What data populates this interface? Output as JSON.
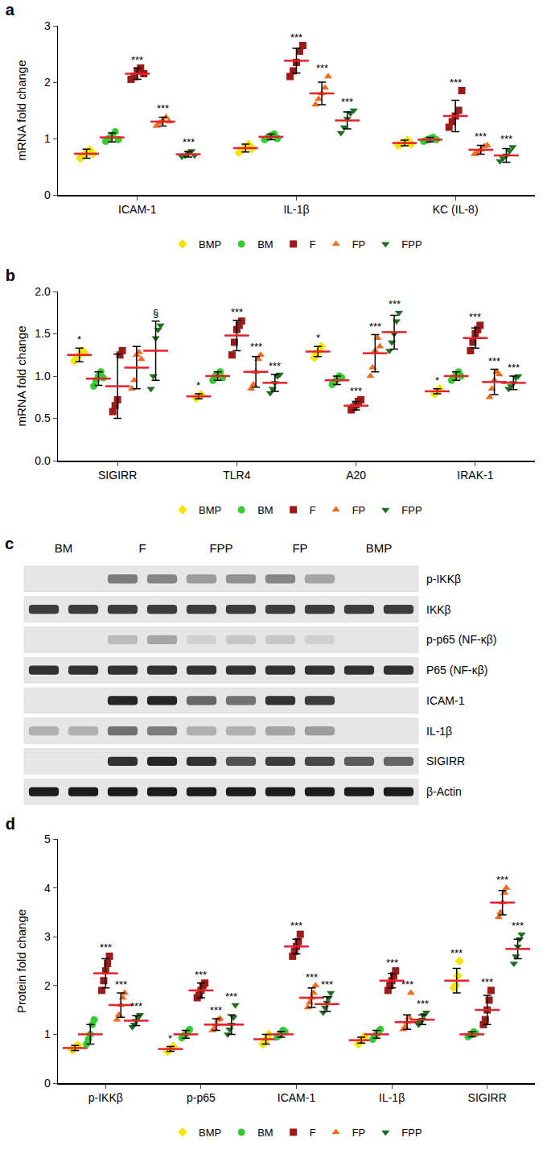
{
  "chart_data": [
    {
      "type": "scatter",
      "title": "a",
      "y_label": "mRNA fold change",
      "categories": [
        "ICAM-1",
        "IL-1β",
        "KC (IL-8)"
      ],
      "ylim": [
        0,
        3
      ],
      "yticks": [
        0,
        1,
        2,
        3
      ],
      "grid": false,
      "legend": "bottom",
      "series": [
        {
          "name": "BMP",
          "color": "#f5e400",
          "marker": "diamond",
          "values": [
            0.73,
            0.83,
            0.92
          ],
          "error": [
            0.08,
            0.07,
            0.05
          ],
          "points": [
            [
              0.65,
              0.7,
              0.75,
              0.8,
              0.73
            ],
            [
              0.75,
              0.8,
              0.85,
              0.9,
              0.82
            ],
            [
              0.88,
              0.9,
              0.93,
              0.97,
              0.9
            ]
          ],
          "significance": [
            null,
            null,
            null
          ]
        },
        {
          "name": "BM",
          "color": "#33cc33",
          "marker": "circle",
          "values": [
            1.02,
            1.03,
            0.98
          ],
          "error": [
            0.08,
            0.05,
            0.04
          ],
          "points": [
            [
              0.95,
              1.0,
              1.05,
              1.12,
              0.98
            ],
            [
              0.98,
              1.02,
              1.05,
              1.08,
              1.0
            ],
            [
              0.95,
              0.97,
              1.0,
              1.02,
              0.98
            ]
          ],
          "significance": [
            null,
            null,
            null
          ]
        },
        {
          "name": "F",
          "color": "#9b1b1b",
          "marker": "square",
          "values": [
            2.15,
            2.38,
            1.4
          ],
          "error": [
            0.1,
            0.22,
            0.28
          ],
          "points": [
            [
              2.05,
              2.1,
              2.2,
              2.25,
              2.15
            ],
            [
              2.1,
              2.2,
              2.35,
              2.55,
              2.65
            ],
            [
              1.2,
              1.3,
              1.4,
              1.5,
              1.85
            ]
          ],
          "significance": [
            "***",
            "***",
            "***"
          ]
        },
        {
          "name": "FP",
          "color": "#f26b1d",
          "marker": "triangle-up",
          "values": [
            1.3,
            1.8,
            0.8
          ],
          "error": [
            0.08,
            0.2,
            0.08
          ],
          "points": [
            [
              1.22,
              1.28,
              1.32,
              1.38,
              1.3
            ],
            [
              1.6,
              1.7,
              1.8,
              1.9,
              2.1
            ],
            [
              0.72,
              0.76,
              0.8,
              0.86,
              0.88
            ]
          ],
          "significance": [
            "***",
            "***",
            "***"
          ]
        },
        {
          "name": "FPP",
          "color": "#1f6e1f",
          "marker": "triangle-down",
          "values": [
            0.72,
            1.32,
            0.7
          ],
          "error": [
            0.05,
            0.15,
            0.12
          ],
          "points": [
            [
              0.68,
              0.7,
              0.74,
              0.78,
              0.7
            ],
            [
              1.1,
              1.2,
              1.35,
              1.45,
              1.5
            ],
            [
              0.6,
              0.65,
              0.7,
              0.78,
              0.85
            ]
          ],
          "significance": [
            "***",
            "***",
            "***"
          ]
        }
      ]
    },
    {
      "type": "scatter",
      "title": "b",
      "y_label": "mRNA fold change",
      "categories": [
        "SIGIRR",
        "TLR4",
        "A20",
        "IRAK-1"
      ],
      "ylim": [
        0,
        2
      ],
      "yticks": [
        {
          "value": 0,
          "label": "0.0"
        },
        0.5,
        {
          "value": 1,
          "label": "1.0"
        },
        1.5,
        {
          "value": 2,
          "label": "2.0"
        }
      ],
      "grid": false,
      "legend": "bottom",
      "series": [
        {
          "name": "BMP",
          "color": "#f5e400",
          "marker": "diamond",
          "values": [
            1.25,
            0.76,
            1.29,
            0.82
          ],
          "error": [
            0.08,
            0.03,
            0.06,
            0.03
          ],
          "points": [
            [
              1.18,
              1.22,
              1.25,
              1.3,
              1.28
            ],
            [
              0.74,
              0.76,
              0.78
            ],
            [
              1.22,
              1.27,
              1.3,
              1.35
            ],
            [
              0.79,
              0.82,
              0.85
            ]
          ],
          "significance": [
            "*",
            "*",
            "*",
            "*"
          ]
        },
        {
          "name": "BM",
          "color": "#33cc33",
          "marker": "circle",
          "values": [
            0.97,
            1.0,
            0.95,
            1.0
          ],
          "error": [
            0.08,
            0.05,
            0.05,
            0.05
          ],
          "points": [
            [
              0.88,
              0.95,
              1.0,
              1.05,
              0.98
            ],
            [
              0.95,
              1.0,
              1.02,
              1.05,
              0.98
            ],
            [
              0.9,
              0.93,
              0.96,
              1.0,
              0.98
            ],
            [
              0.95,
              0.98,
              1.02,
              1.05,
              1.0
            ]
          ],
          "significance": [
            null,
            null,
            null,
            null
          ]
        },
        {
          "name": "F",
          "color": "#9b1b1b",
          "marker": "square",
          "values": [
            0.88,
            1.48,
            0.65,
            1.45
          ],
          "error": [
            0.38,
            0.18,
            0.05,
            0.12
          ],
          "points": [
            [
              0.58,
              0.65,
              0.72,
              1.25,
              1.3
            ],
            [
              1.25,
              1.4,
              1.55,
              1.6,
              1.65
            ],
            [
              0.6,
              0.63,
              0.66,
              0.7,
              0.72
            ],
            [
              1.3,
              1.4,
              1.5,
              1.55,
              1.6
            ]
          ],
          "significance": [
            null,
            "***",
            "***",
            "***"
          ]
        },
        {
          "name": "FP",
          "color": "#f26b1d",
          "marker": "triangle-up",
          "values": [
            1.1,
            1.05,
            1.27,
            0.93
          ],
          "error": [
            0.25,
            0.18,
            0.22,
            0.15
          ],
          "points": [
            [
              0.85,
              0.95,
              1.25,
              1.28,
              1.2
            ],
            [
              0.85,
              0.9,
              1.05,
              1.2,
              1.25
            ],
            [
              1.0,
              1.1,
              1.3,
              1.45,
              1.35
            ],
            [
              0.75,
              0.85,
              0.95,
              1.05,
              1.02
            ]
          ],
          "significance": [
            null,
            "***",
            "***",
            "***"
          ]
        },
        {
          "name": "FPP",
          "color": "#1f6e1f",
          "marker": "triangle-down",
          "values": [
            1.3,
            0.92,
            1.52,
            0.92
          ],
          "error": [
            0.35,
            0.1,
            0.2,
            0.08
          ],
          "points": [
            [
              0.85,
              1.0,
              1.45,
              1.55,
              1.6
            ],
            [
              0.8,
              0.85,
              0.92,
              1.0,
              1.02
            ],
            [
              1.3,
              1.4,
              1.5,
              1.65,
              1.75
            ],
            [
              0.85,
              0.88,
              0.92,
              0.98,
              1.0
            ]
          ],
          "significance": [
            "§",
            "***",
            "***",
            "***"
          ]
        }
      ]
    },
    {
      "type": "scatter",
      "title": "d",
      "y_label": "Protein fold change",
      "categories": [
        "p-IKKβ",
        "p-p65",
        "ICAM-1",
        "IL-1β",
        "SIGIRR"
      ],
      "ylim": [
        0,
        5
      ],
      "yticks": [
        0,
        1,
        2,
        3,
        4,
        5
      ],
      "grid": false,
      "legend": "bottom",
      "series": [
        {
          "name": "BMP",
          "color": "#f5e400",
          "marker": "diamond",
          "values": [
            0.72,
            0.7,
            0.9,
            0.88,
            2.1
          ],
          "error": [
            0.05,
            0.05,
            0.1,
            0.06,
            0.25
          ],
          "points": [
            [
              0.68,
              0.7,
              0.74,
              0.78
            ],
            [
              0.65,
              0.68,
              0.72,
              0.75
            ],
            [
              0.8,
              0.85,
              0.92,
              1.0
            ],
            [
              0.8,
              0.85,
              0.9,
              0.95
            ],
            [
              1.95,
              2.0,
              2.2,
              2.5
            ]
          ],
          "significance": [
            null,
            "*",
            null,
            null,
            "***"
          ]
        },
        {
          "name": "BM",
          "color": "#33cc33",
          "marker": "circle",
          "values": [
            1.0,
            1.0,
            1.0,
            1.0,
            1.0
          ],
          "error": [
            0.2,
            0.08,
            0.06,
            0.08,
            0.05
          ],
          "points": [
            [
              0.8,
              0.9,
              1.0,
              1.2,
              1.3
            ],
            [
              0.93,
              0.97,
              1.0,
              1.05,
              1.1
            ],
            [
              0.95,
              0.98,
              1.02,
              1.08,
              1.05
            ],
            [
              0.9,
              0.95,
              1.0,
              1.05,
              1.1
            ],
            [
              0.95,
              0.98,
              1.0,
              1.05,
              1.02
            ]
          ],
          "significance": [
            null,
            null,
            null,
            null,
            null
          ]
        },
        {
          "name": "F",
          "color": "#9b1b1b",
          "marker": "square",
          "values": [
            2.25,
            1.9,
            2.8,
            2.1,
            1.5
          ],
          "error": [
            0.3,
            0.15,
            0.15,
            0.15,
            0.3
          ],
          "points": [
            [
              1.9,
              2.1,
              2.3,
              2.45,
              2.6
            ],
            [
              1.75,
              1.8,
              1.9,
              2.0,
              2.05
            ],
            [
              2.6,
              2.7,
              2.8,
              2.9,
              3.05
            ],
            [
              1.9,
              2.0,
              2.1,
              2.2,
              2.3
            ],
            [
              1.2,
              1.3,
              1.5,
              1.7,
              1.9
            ]
          ],
          "significance": [
            "***",
            "***",
            "***",
            "***",
            "***"
          ]
        },
        {
          "name": "FP",
          "color": "#f26b1d",
          "marker": "triangle-up",
          "values": [
            1.6,
            1.2,
            1.75,
            1.25,
            3.7
          ],
          "error": [
            0.25,
            0.12,
            0.2,
            0.15,
            0.25
          ],
          "points": [
            [
              1.3,
              1.4,
              1.6,
              1.75,
              1.85
            ],
            [
              1.08,
              1.12,
              1.2,
              1.3,
              1.32
            ],
            [
              1.55,
              1.65,
              1.75,
              1.85,
              2.0
            ],
            [
              1.1,
              1.15,
              1.25,
              1.35,
              1.85
            ],
            [
              3.4,
              3.5,
              3.7,
              3.9,
              4.0
            ]
          ],
          "significance": [
            "***",
            "***",
            "***",
            "***",
            "***"
          ]
        },
        {
          "name": "FPP",
          "color": "#1f6e1f",
          "marker": "triangle-down",
          "values": [
            1.28,
            1.2,
            1.62,
            1.3,
            2.75
          ],
          "error": [
            0.1,
            0.2,
            0.15,
            0.1,
            0.2
          ],
          "points": [
            [
              1.15,
              1.2,
              1.28,
              1.35,
              1.4
            ],
            [
              1.0,
              1.1,
              1.2,
              1.35,
              1.6
            ],
            [
              1.45,
              1.55,
              1.65,
              1.75,
              1.85
            ],
            [
              1.2,
              1.25,
              1.3,
              1.4,
              1.45
            ],
            [
              2.45,
              2.6,
              2.8,
              2.95,
              3.05
            ]
          ],
          "significance": [
            "***",
            "***",
            "***",
            "***",
            "***"
          ]
        }
      ]
    }
  ],
  "blot": {
    "title": "c",
    "lanes": [
      "BM",
      "F",
      "FPP",
      "FP",
      "BMP"
    ],
    "rows": [
      {
        "label": "p-IKKβ",
        "bands": [
          0,
          0,
          0.5,
          0.45,
          0.35,
          0.4,
          0.45,
          0.3,
          0,
          0
        ]
      },
      {
        "label": "IKKβ",
        "bands": [
          0.8,
          0.8,
          0.8,
          0.8,
          0.8,
          0.8,
          0.8,
          0.8,
          0.8,
          0.8
        ]
      },
      {
        "label": "p-p65 (NF-κβ)",
        "bands": [
          0,
          0,
          0.2,
          0.3,
          0.1,
          0.15,
          0.15,
          0.1,
          0,
          0
        ]
      },
      {
        "label": "P65 (NF-κβ)",
        "bands": [
          0.85,
          0.85,
          0.85,
          0.85,
          0.85,
          0.85,
          0.85,
          0.85,
          0.85,
          0.85
        ]
      },
      {
        "label": "ICAM-1",
        "bands": [
          0,
          0,
          0.9,
          0.9,
          0.6,
          0.55,
          0.85,
          0.8,
          0,
          0
        ]
      },
      {
        "label": "IL-1β",
        "bands": [
          0.25,
          0.25,
          0.55,
          0.5,
          0.25,
          0.25,
          0.3,
          0.35,
          0,
          0
        ]
      },
      {
        "label": "SIGIRR",
        "bands": [
          0,
          0,
          0.85,
          0.9,
          0.85,
          0.7,
          0.8,
          0.75,
          0.65,
          0.6
        ]
      },
      {
        "label": "β-Actin",
        "bands": [
          0.95,
          0.95,
          0.95,
          0.95,
          0.95,
          0.95,
          0.95,
          0.95,
          0.95,
          0.95
        ]
      }
    ]
  }
}
